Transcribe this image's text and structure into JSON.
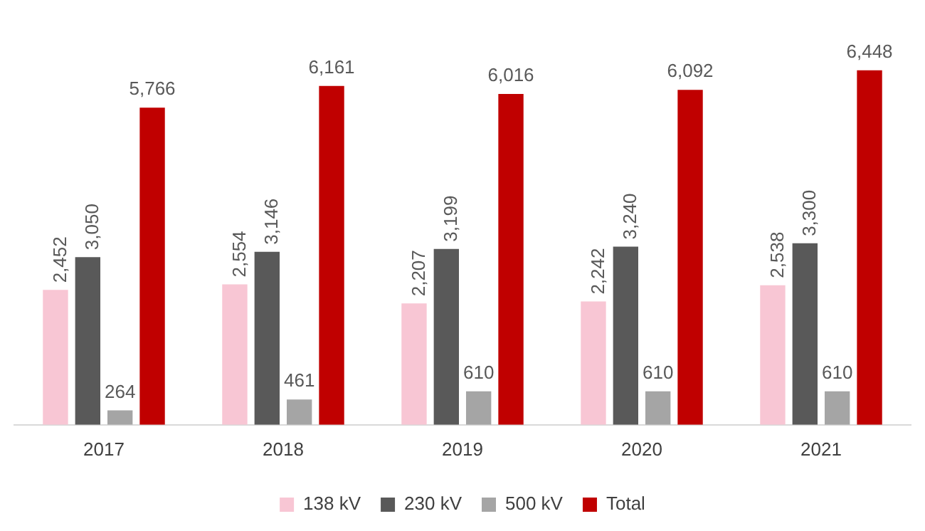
{
  "chart_data": {
    "type": "bar",
    "categories": [
      "2017",
      "2018",
      "2019",
      "2020",
      "2021"
    ],
    "series": [
      {
        "name": "138 kV",
        "color": "#f8c6d4",
        "values": [
          2452,
          2554,
          2207,
          2242,
          2538
        ],
        "value_labels": [
          "2,452",
          "2,554",
          "2,207",
          "2,242",
          "2,538"
        ]
      },
      {
        "name": "230 kV",
        "color": "#595959",
        "values": [
          3050,
          3146,
          3199,
          3240,
          3300
        ],
        "value_labels": [
          "3,050",
          "3,146",
          "3,199",
          "3,240",
          "3,300"
        ]
      },
      {
        "name": "500 kV",
        "color": "#a5a5a5",
        "values": [
          264,
          461,
          610,
          610,
          610
        ],
        "value_labels": [
          "264",
          "461",
          "610",
          "610",
          "610"
        ]
      },
      {
        "name": "Total",
        "color": "#c00000",
        "values": [
          5766,
          6161,
          6016,
          6092,
          6448
        ],
        "value_labels": [
          "5,766",
          "6,161",
          "6,016",
          "6,092",
          "6,448"
        ]
      }
    ],
    "grid": false,
    "legend": "bottom"
  }
}
